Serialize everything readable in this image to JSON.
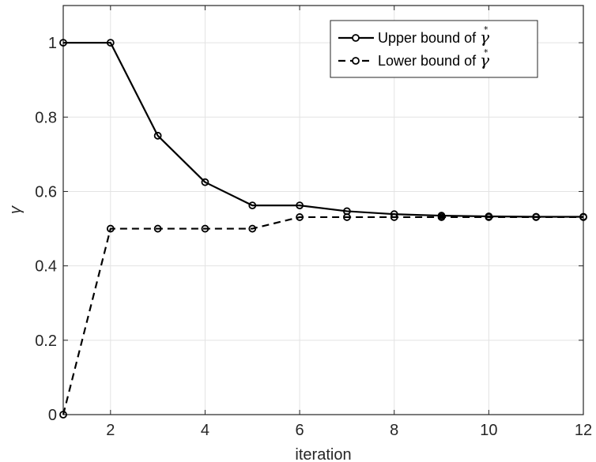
{
  "chart_data": {
    "type": "line",
    "title": "",
    "xlabel": "iteration",
    "ylabel": "γ",
    "xlim": [
      1,
      12
    ],
    "ylim": [
      0,
      1.1
    ],
    "x_ticks": [
      2,
      4,
      6,
      8,
      10,
      12
    ],
    "y_ticks": [
      0,
      0.2,
      0.4,
      0.6,
      0.8,
      1
    ],
    "x_tick_labels": [
      "2",
      "4",
      "6",
      "8",
      "10",
      "12"
    ],
    "y_tick_labels": [
      "0",
      "0.2",
      "0.4",
      "0.6",
      "0.8",
      "1"
    ],
    "grid": true,
    "legend_position": "top-right",
    "series": [
      {
        "name": "Upper bound of γ*",
        "name_text": "Upper bound of ",
        "name_symbol": "γ",
        "name_sup": "*",
        "line_style": "solid",
        "marker": "circle-open",
        "color": "#000000",
        "x": [
          1,
          2,
          3,
          4,
          5,
          6,
          7,
          8,
          9,
          10,
          11,
          12
        ],
        "y": [
          1.0,
          1.0,
          0.75,
          0.625,
          0.5625,
          0.5625,
          0.547,
          0.539,
          0.535,
          0.533,
          0.532,
          0.532
        ]
      },
      {
        "name": "Lower bound of γ*",
        "name_text": "Lower bound of ",
        "name_symbol": "γ",
        "name_sup": "*",
        "line_style": "dashed",
        "marker": "circle-open",
        "color": "#000000",
        "x": [
          1,
          2,
          3,
          4,
          5,
          6,
          7,
          8,
          9,
          10,
          11,
          12
        ],
        "y": [
          0.0,
          0.5,
          0.5,
          0.5,
          0.5,
          0.531,
          0.531,
          0.531,
          0.531,
          0.531,
          0.531,
          0.531
        ]
      }
    ]
  }
}
